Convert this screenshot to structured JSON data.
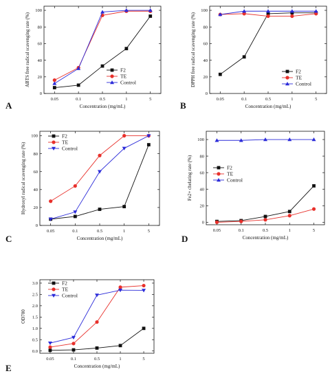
{
  "colors": {
    "F2": "#111111",
    "TE": "#e8302b",
    "Control": "#2b2bd9"
  },
  "chart_data": [
    {
      "type": "line",
      "panel": "A",
      "ylabel": "ABTS free radical scavenging rate (%)",
      "xlabel": "Concentration (mg/mL)",
      "categories": [
        "0.05",
        "0.1",
        "0.5",
        "1",
        "5"
      ],
      "yticks": [
        "0",
        "20",
        "40",
        "60",
        "80",
        "100"
      ],
      "ylim": [
        0,
        105
      ],
      "legend": "bottom-right",
      "series": [
        {
          "name": "F2",
          "marker": "square",
          "values": [
            7,
            10,
            33,
            54,
            93
          ]
        },
        {
          "name": "TE",
          "marker": "circle",
          "values": [
            16,
            31,
            94,
            99,
            99
          ]
        },
        {
          "name": "Control",
          "marker": "triangle-up",
          "values": [
            12,
            30,
            98,
            100,
            100
          ]
        }
      ]
    },
    {
      "type": "line",
      "panel": "B",
      "ylabel": "DPPH free radical scavenging rate (%)",
      "xlabel": "Concentration (mg/mL)",
      "categories": [
        "0.05",
        "0.1",
        "0.5",
        "1",
        "5"
      ],
      "yticks": [
        "0",
        "20",
        "40",
        "60",
        "80",
        "100"
      ],
      "ylim": [
        0,
        105
      ],
      "legend": "bottom-right",
      "series": [
        {
          "name": "F2",
          "marker": "square",
          "values": [
            23,
            44,
            96,
            97,
            97
          ]
        },
        {
          "name": "TE",
          "marker": "circle",
          "values": [
            95,
            96,
            93,
            93,
            96
          ]
        },
        {
          "name": "Control",
          "marker": "triangle-up",
          "values": [
            95,
            99,
            99,
            99,
            99
          ]
        }
      ]
    },
    {
      "type": "line",
      "panel": "C",
      "ylabel": "Hydroxyl radical scavenging rate (%)",
      "xlabel": "Concentration (mg/mL)",
      "categories": [
        "0.05",
        "0.1",
        "0.5",
        "1",
        "5"
      ],
      "yticks": [
        "0",
        "20",
        "40",
        "60",
        "80",
        "100"
      ],
      "ylim": [
        0,
        105
      ],
      "legend": "top-left",
      "series": [
        {
          "name": "F2",
          "marker": "square",
          "values": [
            7,
            10,
            18,
            21,
            90
          ]
        },
        {
          "name": "TE",
          "marker": "circle",
          "values": [
            27,
            44,
            78,
            100,
            100
          ]
        },
        {
          "name": "Control",
          "marker": "triangle-down",
          "values": [
            7,
            15,
            60,
            86,
            100
          ]
        }
      ]
    },
    {
      "type": "line",
      "panel": "D",
      "ylabel": "Fe2+ chelating rate (%)",
      "xlabel": "Concentration (mg/mL)",
      "categories": [
        "0.05",
        "0.1",
        "0.5",
        "1",
        "5"
      ],
      "yticks": [
        "0",
        "20",
        "40",
        "60",
        "80",
        "100"
      ],
      "ylim": [
        -3,
        110
      ],
      "legend": "middle-left",
      "series": [
        {
          "name": "F2",
          "marker": "square",
          "values": [
            1,
            2,
            7,
            13,
            44
          ]
        },
        {
          "name": "TE",
          "marker": "circle",
          "values": [
            0,
            1,
            3,
            8,
            16
          ]
        },
        {
          "name": "Control",
          "marker": "triangle-up",
          "values": [
            99,
            99,
            100,
            100,
            100
          ]
        }
      ]
    },
    {
      "type": "line",
      "panel": "E",
      "ylabel": "OD700",
      "xlabel": "Concentration (mg/mL)",
      "categories": [
        "0.05",
        "0.1",
        "0.5",
        "1",
        "5"
      ],
      "yticks": [
        "0.0",
        "0.5",
        "1.0",
        "1.5",
        "2.0",
        "2.5",
        "3.0"
      ],
      "ylim": [
        -0.1,
        3.15
      ],
      "legend": "top-left",
      "series": [
        {
          "name": "F2",
          "marker": "square",
          "values": [
            0.03,
            0.05,
            0.13,
            0.24,
            1.0
          ]
        },
        {
          "name": "TE",
          "marker": "circle",
          "values": [
            0.17,
            0.33,
            1.28,
            2.82,
            2.89
          ]
        },
        {
          "name": "Control",
          "marker": "triangle-down",
          "values": [
            0.35,
            0.6,
            2.47,
            2.69,
            2.68
          ]
        }
      ]
    }
  ]
}
